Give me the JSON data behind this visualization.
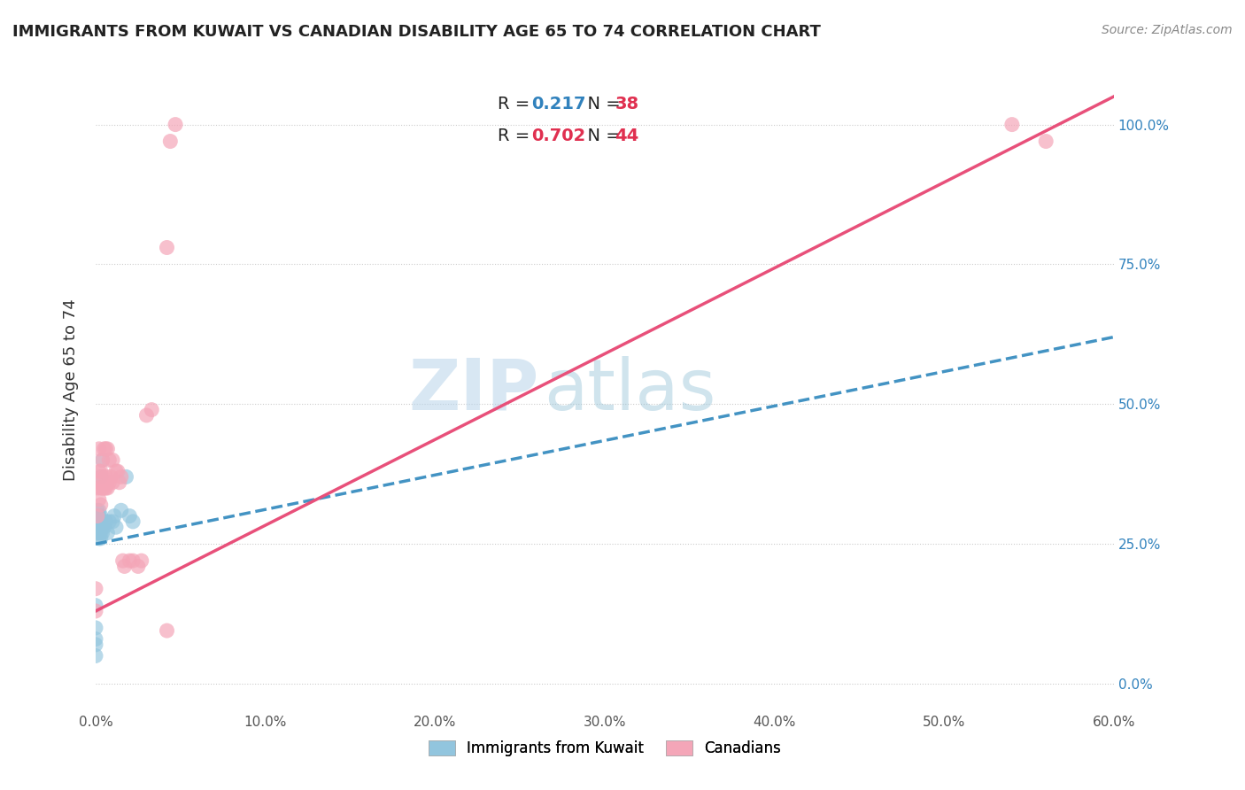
{
  "title": "IMMIGRANTS FROM KUWAIT VS CANADIAN DISABILITY AGE 65 TO 74 CORRELATION CHART",
  "source": "Source: ZipAtlas.com",
  "ylabel": "Disability Age 65 to 74",
  "xlabel_ticks": [
    "0.0%",
    "10.0%",
    "20.0%",
    "30.0%",
    "40.0%",
    "50.0%",
    "60.0%"
  ],
  "ylabel_ticks": [
    "0.0%",
    "25.0%",
    "50.0%",
    "75.0%",
    "100.0%"
  ],
  "xlim": [
    0.0,
    0.6
  ],
  "ylim": [
    -0.05,
    1.1
  ],
  "watermark_zip": "ZIP",
  "watermark_atlas": "atlas",
  "legend_r1": "R = ",
  "legend_v1": "0.217",
  "legend_n1_label": "N = ",
  "legend_n1": "38",
  "legend_r2": "R = ",
  "legend_v2": "0.702",
  "legend_n2_label": "N = ",
  "legend_n2": "44",
  "blue_color": "#92c5de",
  "pink_color": "#f4a6b8",
  "blue_line_color": "#4393c3",
  "pink_line_color": "#e8507a",
  "grid_color": "#cccccc",
  "background_color": "#ffffff",
  "blue_x": [
    0.0,
    0.0,
    0.0,
    0.0,
    0.0,
    0.001,
    0.001,
    0.001,
    0.001,
    0.001,
    0.001,
    0.002,
    0.002,
    0.002,
    0.002,
    0.002,
    0.002,
    0.002,
    0.003,
    0.003,
    0.003,
    0.003,
    0.003,
    0.003,
    0.004,
    0.004,
    0.004,
    0.005,
    0.006,
    0.007,
    0.008,
    0.01,
    0.011,
    0.012,
    0.015,
    0.018,
    0.02,
    0.022
  ],
  "blue_y": [
    0.05,
    0.07,
    0.08,
    0.1,
    0.14,
    0.27,
    0.28,
    0.29,
    0.3,
    0.3,
    0.31,
    0.26,
    0.27,
    0.28,
    0.28,
    0.29,
    0.3,
    0.31,
    0.26,
    0.27,
    0.28,
    0.29,
    0.3,
    0.37,
    0.27,
    0.28,
    0.4,
    0.28,
    0.29,
    0.27,
    0.29,
    0.29,
    0.3,
    0.28,
    0.31,
    0.37,
    0.3,
    0.29
  ],
  "pink_x": [
    0.0,
    0.0,
    0.001,
    0.001,
    0.002,
    0.002,
    0.002,
    0.002,
    0.003,
    0.003,
    0.003,
    0.004,
    0.004,
    0.004,
    0.005,
    0.005,
    0.006,
    0.006,
    0.006,
    0.007,
    0.007,
    0.008,
    0.008,
    0.009,
    0.01,
    0.01,
    0.012,
    0.013,
    0.014,
    0.015,
    0.016,
    0.017,
    0.02,
    0.022,
    0.025,
    0.027,
    0.03,
    0.033,
    0.042,
    0.042,
    0.044,
    0.047,
    0.54,
    0.56
  ],
  "pink_y": [
    0.13,
    0.17,
    0.3,
    0.35,
    0.33,
    0.36,
    0.38,
    0.42,
    0.32,
    0.35,
    0.38,
    0.35,
    0.37,
    0.4,
    0.35,
    0.42,
    0.35,
    0.37,
    0.42,
    0.35,
    0.42,
    0.36,
    0.4,
    0.37,
    0.36,
    0.4,
    0.38,
    0.38,
    0.36,
    0.37,
    0.22,
    0.21,
    0.22,
    0.22,
    0.21,
    0.22,
    0.48,
    0.49,
    0.095,
    0.78,
    0.97,
    1.0,
    1.0,
    0.97
  ],
  "blue_line_x0": 0.0,
  "blue_line_y0": 0.25,
  "blue_line_x1": 0.6,
  "blue_line_y1": 0.62,
  "pink_line_x0": 0.0,
  "pink_line_y0": 0.13,
  "pink_line_x1": 0.6,
  "pink_line_y1": 1.05
}
